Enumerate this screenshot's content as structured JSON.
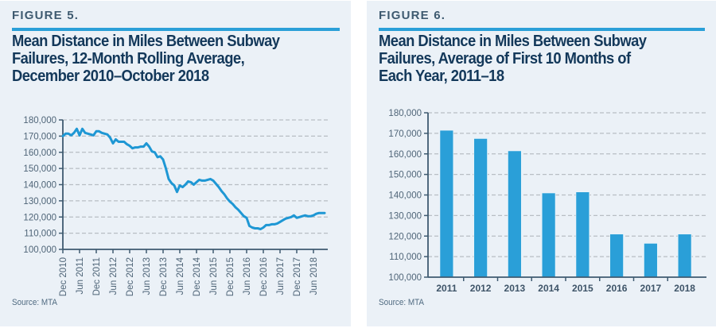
{
  "figures": [
    {
      "label": "FIGURE 5.",
      "title_lines": [
        "Mean Distance in Miles Between Subway",
        "Failures, 12-Month Rolling Average,",
        "December 2010–October 2018"
      ],
      "source": "Source: MTA"
    },
    {
      "label": "FIGURE 6.",
      "title_lines": [
        "Mean Distance in Miles Between Subway",
        "Failures, Average of First 10 Months of",
        "Each Year, 2011–18"
      ],
      "source": "Source: MTA"
    }
  ],
  "colors": {
    "accent": "#2a9fd8",
    "bar": "#2a9fd8",
    "line": "#1e97d4",
    "panel_bg": "#ebf1f7",
    "title": "#13385a",
    "axis": "#3e5a70",
    "grid": "#b8bec4"
  },
  "chart_data": [
    {
      "type": "line",
      "title": "Mean Distance in Miles Between Subway Failures, 12-Month Rolling Average, December 2010–October 2018",
      "xlabel": "",
      "ylabel": "",
      "ylim": [
        100000,
        180000
      ],
      "yticks": [
        100000,
        110000,
        120000,
        130000,
        140000,
        150000,
        160000,
        170000,
        180000
      ],
      "ytick_labels": [
        "100,000",
        "110,000",
        "120,000",
        "130,000",
        "140,000",
        "150,000",
        "160,000",
        "170,000",
        "180,000"
      ],
      "xtick_labels": [
        "Dec 2010",
        "Jun 2011",
        "Dec 2011",
        "Jun 2012",
        "Dec 2012",
        "Jun 2013",
        "Dec 2013",
        "Jun 2014",
        "Dec 2014",
        "Jun 2015",
        "Dec 2015",
        "Jun 2016",
        "Dec 2016",
        "Jun 2017",
        "Dec 2017",
        "Jun 2018"
      ],
      "grid": "horizontal dashed",
      "legend": "none",
      "x_start": "Dec 2010",
      "x_end": "Oct 2018",
      "series": [
        {
          "name": "12-month rolling average",
          "values": [
            170000,
            171500,
            171500,
            170500,
            172000,
            174500,
            170500,
            174500,
            172000,
            171500,
            171000,
            170500,
            173000,
            173000,
            172000,
            171500,
            171000,
            169000,
            165500,
            168000,
            166500,
            166500,
            166500,
            165000,
            164000,
            162500,
            163000,
            163000,
            163500,
            163500,
            165500,
            163500,
            160500,
            160000,
            157000,
            157500,
            155500,
            150000,
            143500,
            141000,
            139500,
            135500,
            139500,
            138500,
            140000,
            142000,
            141500,
            140000,
            141500,
            143000,
            142500,
            142500,
            143000,
            143500,
            142500,
            140500,
            138500,
            136000,
            134000,
            131500,
            129500,
            128000,
            126000,
            124500,
            122500,
            120500,
            119500,
            114500,
            113500,
            113000,
            113000,
            112500,
            113500,
            115000,
            115000,
            115500,
            115500,
            116000,
            117000,
            118000,
            119000,
            119500,
            120000,
            121000,
            119500,
            120000,
            120500,
            121000,
            120500,
            120500,
            121000,
            122000,
            122500,
            122500,
            122500
          ]
        }
      ]
    },
    {
      "type": "bar",
      "title": "Mean Distance in Miles Between Subway Failures, Average of First 10 Months of Each Year, 2011–18",
      "xlabel": "",
      "ylabel": "",
      "ylim": [
        100000,
        180000
      ],
      "yticks": [
        100000,
        110000,
        120000,
        130000,
        140000,
        150000,
        160000,
        170000,
        180000
      ],
      "ytick_labels": [
        "100,000",
        "110,000",
        "120,000",
        "130,000",
        "140,000",
        "150,000",
        "160,000",
        "170,000",
        "180,000"
      ],
      "grid": "horizontal dashed",
      "legend": "none",
      "categories": [
        "2011",
        "2012",
        "2013",
        "2014",
        "2015",
        "2016",
        "2017",
        "2018"
      ],
      "values": [
        171500,
        167500,
        161500,
        141000,
        141500,
        121000,
        116500,
        121000
      ]
    }
  ]
}
